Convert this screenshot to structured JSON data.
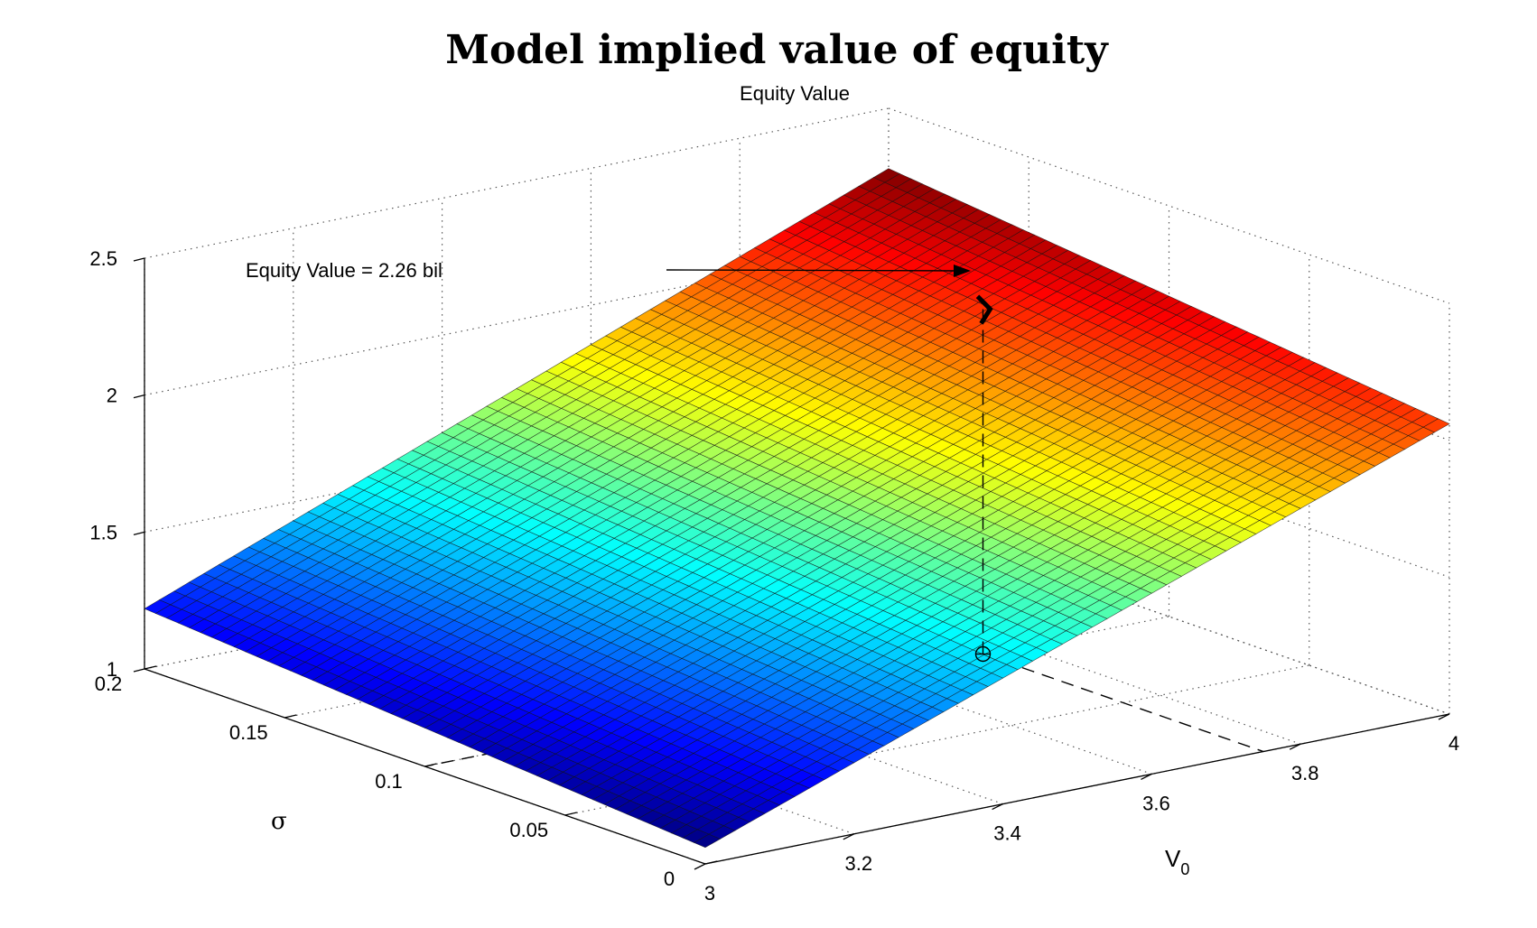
{
  "chart_data": {
    "type": "surface",
    "title": "Model implied value of equity",
    "subtitle": "Equity Value",
    "xlabel": "V",
    "xlabel_sub": "0",
    "ylabel": "σ",
    "zlabel": "",
    "xlim": [
      3,
      4
    ],
    "ylim": [
      0,
      0.2
    ],
    "zlim": [
      1,
      2.5
    ],
    "x_ticks": [
      "3",
      "3.2",
      "3.4",
      "3.6",
      "3.8",
      "4"
    ],
    "x_tick_values": [
      3,
      3.2,
      3.4,
      3.6,
      3.8,
      4
    ],
    "y_ticks": [
      "0",
      "0.05",
      "0.1",
      "0.15",
      "0.2"
    ],
    "y_tick_values": [
      0,
      0.05,
      0.1,
      0.15,
      0.2
    ],
    "z_ticks": [
      "1",
      "1.5",
      "2",
      "2.5"
    ],
    "z_tick_values": [
      1,
      1.5,
      2,
      2.5
    ],
    "surface": {
      "x_range": [
        3,
        4
      ],
      "y_range": [
        0,
        0.2
      ],
      "nx": 51,
      "ny": 51,
      "z_at_corners": {
        "x3_y0": 1.06,
        "x3_y0.2": 1.22,
        "x4_y0": 2.06,
        "x4_y0.2": 2.28
      },
      "colormap": "jet"
    },
    "marker": {
      "x": 3.75,
      "y": 0.1,
      "z": 2.26
    },
    "annotation": "Equity Value = 2.26 bil",
    "grid": true,
    "legend": "none"
  }
}
